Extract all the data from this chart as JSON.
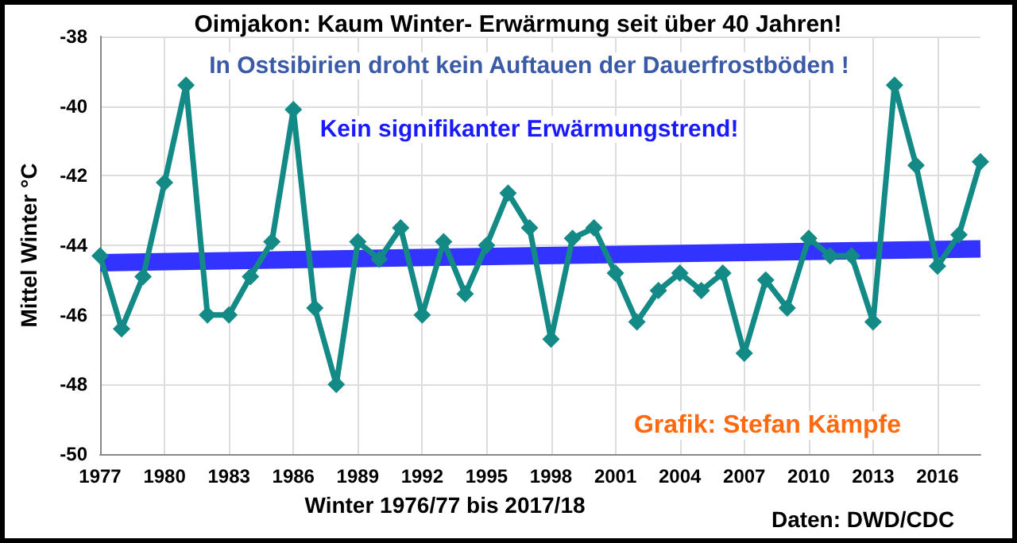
{
  "chart_data": {
    "type": "line",
    "title": "Oimjakon: Kaum Winter- Erwärmung seit über 40 Jahren!",
    "subtitle": "In Ostsibirien droht kein Auftauen der Dauerfrostböden !",
    "xlabel": "Winter 1976/77 bis 2017/18",
    "ylabel": "Mittel Winter °C",
    "annotations": [
      "Kein signifikanter Erwärmungstrend!",
      "Grafik: Stefan Kämpfe",
      "Daten: DWD/CDC"
    ],
    "x": [
      1977,
      1978,
      1979,
      1980,
      1981,
      1982,
      1983,
      1984,
      1985,
      1986,
      1987,
      1988,
      1989,
      1990,
      1991,
      1992,
      1993,
      1994,
      1995,
      1996,
      1997,
      1998,
      1999,
      2000,
      2001,
      2002,
      2003,
      2004,
      2005,
      2006,
      2007,
      2008,
      2009,
      2010,
      2011,
      2012,
      2013,
      2014,
      2015,
      2016,
      2017,
      2018
    ],
    "series": [
      {
        "color": "#138a86",
        "values": [
          -44.3,
          -46.4,
          -44.9,
          -42.2,
          -39.4,
          -46.0,
          -46.0,
          -44.9,
          -43.9,
          -40.1,
          -45.8,
          -48.0,
          -43.9,
          -44.4,
          -43.5,
          -46.0,
          -43.9,
          -45.4,
          -44.0,
          -42.5,
          -43.5,
          -46.7,
          -43.8,
          -43.5,
          -44.8,
          -46.2,
          -45.3,
          -44.8,
          -45.3,
          -44.8,
          -47.1,
          -45.0,
          -45.8,
          -43.8,
          -44.3,
          -44.3,
          -46.2,
          -39.4,
          -41.7,
          -44.6,
          -43.7,
          -41.6
        ],
        "marker": "diamond"
      },
      {
        "color": "#3333ff",
        "x": [
          1977,
          2018
        ],
        "values": [
          -44.5,
          -44.1
        ],
        "marker": "none"
      }
    ],
    "xlim": [
      1977,
      2018
    ],
    "xticks": [
      1977,
      1980,
      1983,
      1986,
      1989,
      1992,
      1995,
      1998,
      2001,
      2004,
      2007,
      2010,
      2013,
      2016
    ],
    "ylim": [
      -50,
      -38
    ],
    "yticks": [
      -50,
      -48,
      -46,
      -44,
      -42,
      -40,
      -38
    ],
    "grid": true,
    "line_style": "solid"
  }
}
